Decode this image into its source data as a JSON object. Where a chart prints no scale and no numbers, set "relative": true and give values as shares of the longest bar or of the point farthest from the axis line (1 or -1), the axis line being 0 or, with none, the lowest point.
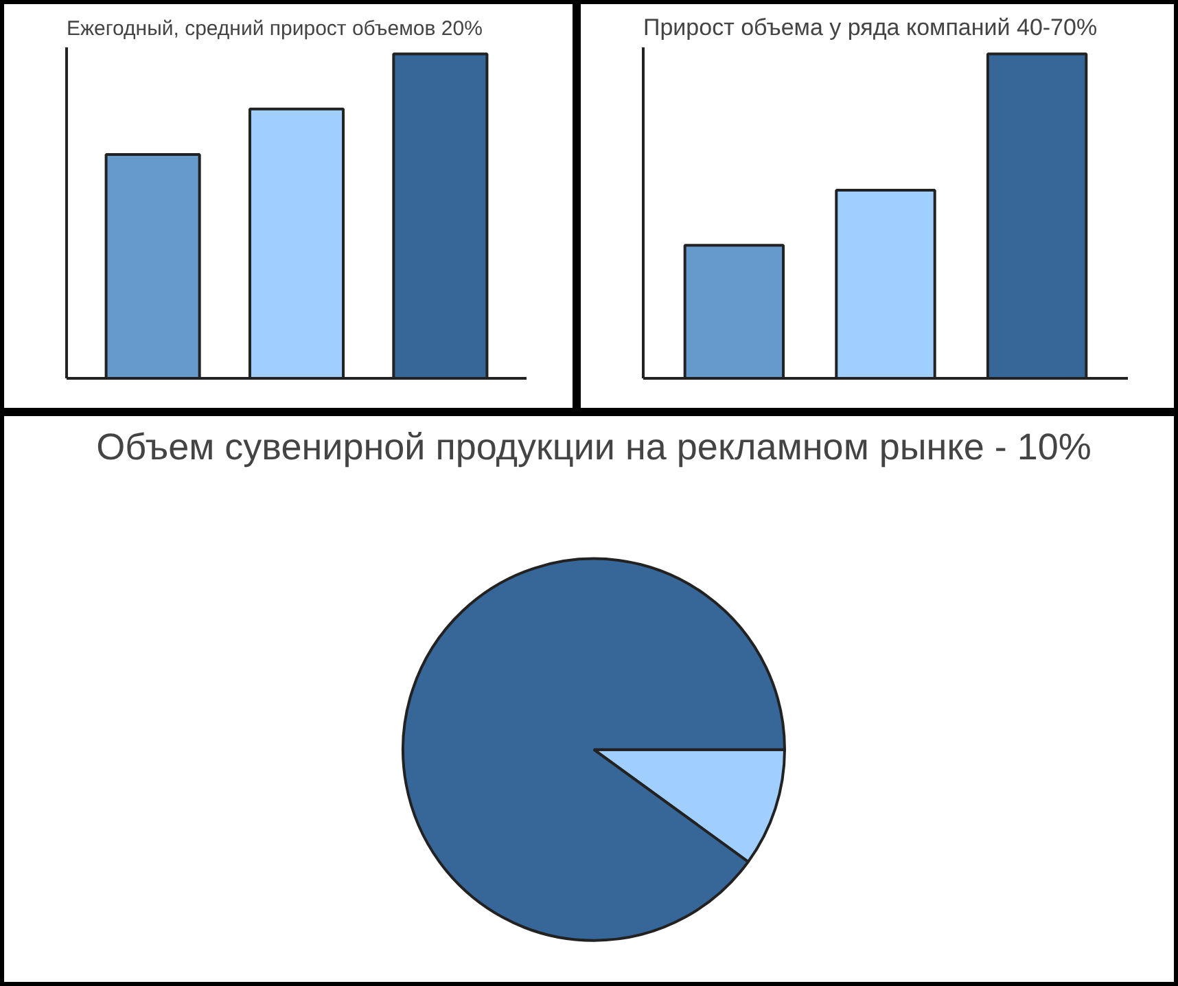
{
  "chart_data": [
    {
      "type": "bar",
      "title": "Ежегодный, средний прирост объемов 20%",
      "relative": true,
      "categories": [
        null,
        null,
        null
      ],
      "values": [
        0.69,
        0.83,
        1
      ],
      "colors": [
        "#6699cc",
        "#a0cfff",
        "#376699"
      ]
    },
    {
      "type": "bar",
      "title": "Прирост объема у ряда компаний 40-70%",
      "relative": true,
      "categories": [
        null,
        null,
        null
      ],
      "values": [
        0.41,
        0.58,
        1
      ],
      "colors": [
        "#6699cc",
        "#a0cfff",
        "#376699"
      ]
    },
    {
      "type": "pie",
      "title": "Объем сувенирной продукции на рекламном рынке - 10%",
      "categories": [
        null,
        null
      ],
      "values": [
        10,
        90
      ],
      "colors": [
        "#a0cfff",
        "#376699"
      ]
    }
  ]
}
